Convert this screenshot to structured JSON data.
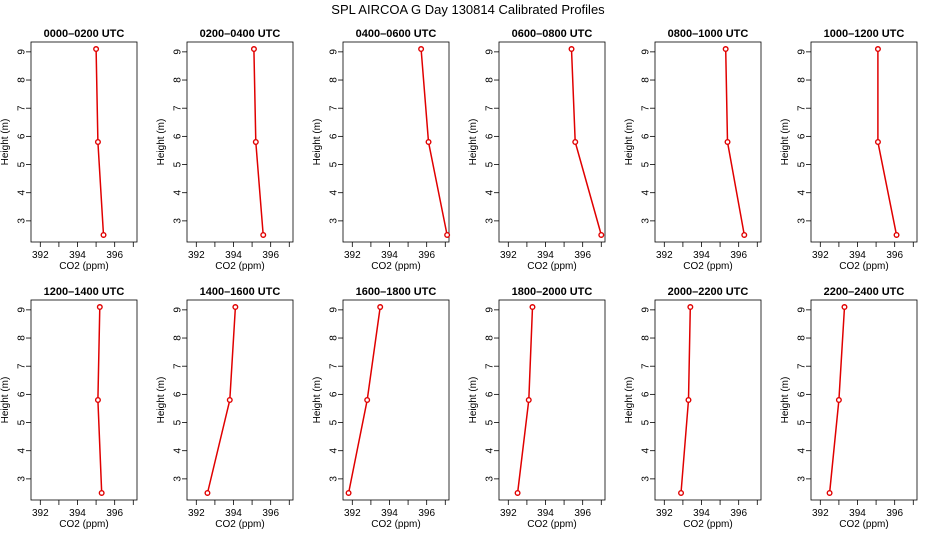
{
  "title": "SPL AIRCOA G  Day 130814  Calibrated Profiles",
  "chart_data": {
    "type": "line",
    "xlabel": "CO2 (ppm)",
    "ylabel": "Height (m)",
    "xlim": [
      391.5,
      397.2
    ],
    "ylim": [
      2.25,
      9.35
    ],
    "x_ticks": [
      392,
      394,
      396
    ],
    "x_tick_labels": [
      "392",
      "394",
      "396"
    ],
    "y_ticks": [
      3,
      4,
      5,
      6,
      7,
      8,
      9
    ],
    "y_tick_labels": [
      "3",
      "4",
      "5",
      "6",
      "7",
      "8",
      "9"
    ],
    "heights": [
      9.1,
      5.8,
      2.5
    ],
    "line_color": "#e00000",
    "panels": [
      {
        "title": "0000–0200 UTC",
        "co2": [
          395.0,
          395.1,
          395.4
        ]
      },
      {
        "title": "0200–0400 UTC",
        "co2": [
          395.1,
          395.2,
          395.6
        ]
      },
      {
        "title": "0400–0600 UTC",
        "co2": [
          395.7,
          396.1,
          397.1
        ]
      },
      {
        "title": "0600–0800 UTC",
        "co2": [
          395.4,
          395.6,
          397.0
        ]
      },
      {
        "title": "0800–1000 UTC",
        "co2": [
          395.3,
          395.4,
          396.3
        ]
      },
      {
        "title": "1000–1200 UTC",
        "co2": [
          395.1,
          395.1,
          396.1
        ]
      },
      {
        "title": "1200–1400 UTC",
        "co2": [
          395.2,
          395.1,
          395.3
        ]
      },
      {
        "title": "1400–1600 UTC",
        "co2": [
          394.1,
          393.8,
          392.6
        ]
      },
      {
        "title": "1600–1800 UTC",
        "co2": [
          393.5,
          392.8,
          391.8
        ]
      },
      {
        "title": "1800–2000 UTC",
        "co2": [
          393.3,
          393.1,
          392.5
        ]
      },
      {
        "title": "2000–2200 UTC",
        "co2": [
          393.4,
          393.3,
          392.9
        ]
      },
      {
        "title": "2200–2400 UTC",
        "co2": [
          393.3,
          393.0,
          392.5
        ]
      }
    ]
  }
}
